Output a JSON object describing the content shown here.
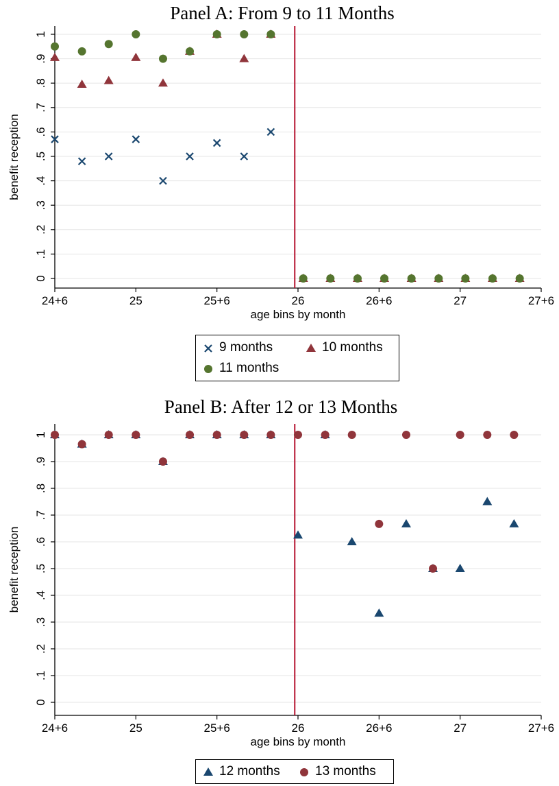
{
  "colors": {
    "navy": "#1a476f",
    "maroon": "#90353b",
    "olive": "#55752f",
    "cutoff_line": "#b5122e",
    "grid": "#e6e6e6",
    "axis": "#000000"
  },
  "chart_data": [
    {
      "type": "scatter",
      "title": "Panel A: From 9 to 11 Months",
      "xlabel": "age bins by month",
      "ylabel": "benefit reception",
      "xlim": [
        0,
        12
      ],
      "ylim": [
        0,
        1
      ],
      "xticks": [
        {
          "value": 0,
          "label": "24+6"
        },
        {
          "value": 2,
          "label": "25"
        },
        {
          "value": 4,
          "label": "25+6"
        },
        {
          "value": 6,
          "label": "26"
        },
        {
          "value": 8,
          "label": "26+6"
        },
        {
          "value": 10,
          "label": "27"
        },
        {
          "value": 12,
          "label": "27+6"
        }
      ],
      "yticks": [
        {
          "value": 0,
          "label": "0"
        },
        {
          "value": 0.1,
          "label": ".1"
        },
        {
          "value": 0.2,
          "label": ".2"
        },
        {
          "value": 0.3,
          "label": ".3"
        },
        {
          "value": 0.4,
          "label": ".4"
        },
        {
          "value": 0.5,
          "label": ".5"
        },
        {
          "value": 0.6,
          "label": ".6"
        },
        {
          "value": 0.7,
          "label": ".7"
        },
        {
          "value": 0.8,
          "label": ".8"
        },
        {
          "value": 0.9,
          "label": ".9"
        },
        {
          "value": 1,
          "label": "1"
        }
      ],
      "cutoff_x": 5.92,
      "grid": "horizontal",
      "legend_position": "bottom",
      "series": [
        {
          "name": "9 months",
          "marker": "x",
          "color": "#1a476f",
          "x": [
            0.0,
            0.67,
            1.33,
            2.0,
            2.67,
            3.33,
            4.0,
            4.67,
            5.33
          ],
          "y": [
            0.57,
            0.48,
            0.5,
            0.57,
            0.4,
            0.5,
            0.555,
            0.5,
            0.6
          ]
        },
        {
          "name": "10 months",
          "marker": "triangle",
          "color": "#90353b",
          "x": [
            0.0,
            0.67,
            1.33,
            2.0,
            2.67,
            3.33,
            4.0,
            4.67,
            5.33,
            6.13,
            6.8,
            7.47,
            8.13,
            8.8,
            9.47,
            10.13,
            10.8,
            11.47
          ],
          "y": [
            0.905,
            0.795,
            0.81,
            0.905,
            0.8,
            0.93,
            1,
            0.9,
            1,
            0,
            0,
            0,
            0,
            0,
            0,
            0,
            0,
            0
          ]
        },
        {
          "name": "11 months",
          "marker": "circle",
          "color": "#55752f",
          "x": [
            0.0,
            0.67,
            1.33,
            2.0,
            2.67,
            3.33,
            4.0,
            4.67,
            5.33,
            6.13,
            6.8,
            7.47,
            8.13,
            8.8,
            9.47,
            10.13,
            10.8,
            11.47
          ],
          "y": [
            0.95,
            0.93,
            0.96,
            1,
            0.9,
            0.93,
            1,
            1,
            1,
            0,
            0,
            0,
            0,
            0,
            0,
            0,
            0,
            0
          ]
        }
      ]
    },
    {
      "type": "scatter",
      "title": "Panel B: After 12 or 13 Months",
      "xlabel": "age bins by month",
      "ylabel": "benefit reception",
      "xlim": [
        0,
        12
      ],
      "ylim": [
        0,
        1
      ],
      "xticks": [
        {
          "value": 0,
          "label": "24+6"
        },
        {
          "value": 2,
          "label": "25"
        },
        {
          "value": 4,
          "label": "25+6"
        },
        {
          "value": 6,
          "label": "26"
        },
        {
          "value": 8,
          "label": "26+6"
        },
        {
          "value": 10,
          "label": "27"
        },
        {
          "value": 12,
          "label": "27+6"
        }
      ],
      "yticks": [
        {
          "value": 0,
          "label": "0"
        },
        {
          "value": 0.1,
          "label": ".1"
        },
        {
          "value": 0.2,
          "label": ".2"
        },
        {
          "value": 0.3,
          "label": ".3"
        },
        {
          "value": 0.4,
          "label": ".4"
        },
        {
          "value": 0.5,
          "label": ".5"
        },
        {
          "value": 0.6,
          "label": ".6"
        },
        {
          "value": 0.7,
          "label": ".7"
        },
        {
          "value": 0.8,
          "label": ".8"
        },
        {
          "value": 0.9,
          "label": ".9"
        },
        {
          "value": 1,
          "label": "1"
        }
      ],
      "cutoff_x": 5.92,
      "grid": "horizontal",
      "legend_position": "bottom",
      "series": [
        {
          "name": "12 months",
          "marker": "triangle",
          "color": "#1a476f",
          "x": [
            0.0,
            0.67,
            1.33,
            2.0,
            2.67,
            3.33,
            4.0,
            4.67,
            5.33,
            6.0,
            6.67,
            7.33,
            8.0,
            8.67,
            9.33,
            10.0,
            10.67,
            11.33
          ],
          "y": [
            1,
            0.965,
            1,
            1,
            0.9,
            1,
            1,
            1,
            1,
            0.625,
            1,
            0.6,
            0.333,
            0.667,
            0.5,
            0.5,
            0.75,
            0.667
          ]
        },
        {
          "name": "13 months",
          "marker": "circle",
          "color": "#90353b",
          "x": [
            0.0,
            0.67,
            1.33,
            2.0,
            2.67,
            3.33,
            4.0,
            4.67,
            5.33,
            6.0,
            6.67,
            7.33,
            8.0,
            8.67,
            9.33,
            10.0,
            10.67,
            11.33
          ],
          "y": [
            1,
            0.965,
            1,
            1,
            0.9,
            1,
            1,
            1,
            1,
            1,
            1,
            1,
            0.667,
            1,
            0.5,
            1,
            1,
            1
          ]
        }
      ]
    }
  ]
}
